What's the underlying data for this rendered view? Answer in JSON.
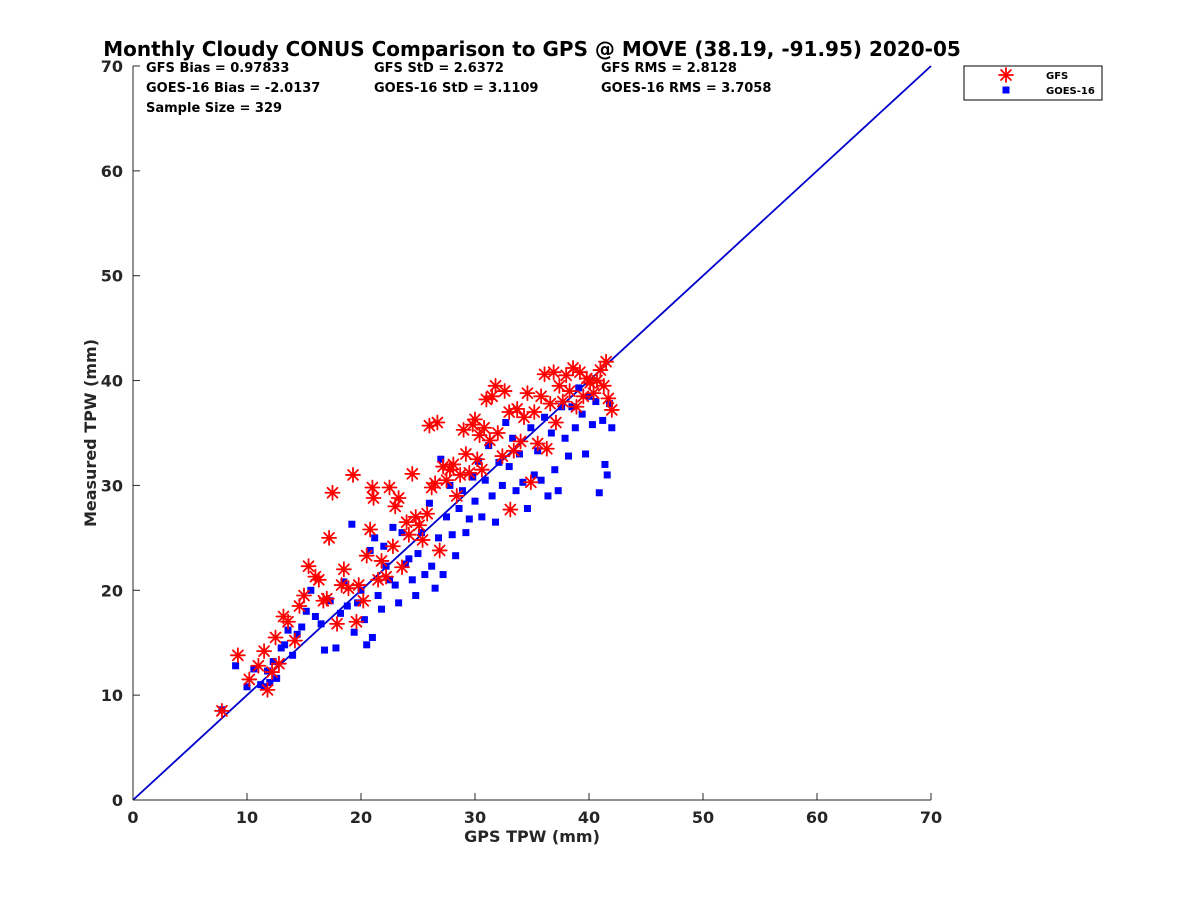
{
  "chart_data": {
    "type": "scatter",
    "title": "Monthly Cloudy CONUS Comparison to GPS @ MOVE (38.19, -91.95) 2020-05",
    "xlabel": "GPS TPW (mm)",
    "ylabel": "Measured TPW (mm)",
    "xlim": [
      0,
      70
    ],
    "ylim": [
      0,
      70
    ],
    "xticks": [
      0,
      10,
      20,
      30,
      40,
      50,
      60,
      70
    ],
    "yticks": [
      0,
      10,
      20,
      30,
      40,
      50,
      60,
      70
    ],
    "grid": false,
    "legend_position": "top-right",
    "stats": [
      [
        "GFS Bias = 0.97833",
        "GFS StD = 2.6372",
        "GFS RMS = 2.8128"
      ],
      [
        "GOES-16 Bias = -2.0137",
        "GOES-16 StD = 3.1109",
        "GOES-16 RMS = 3.7058"
      ],
      [
        "Sample Size = 329"
      ]
    ],
    "reference_line": {
      "from": [
        0,
        0
      ],
      "to": [
        70,
        70
      ],
      "color": "#0000cc"
    },
    "series": [
      {
        "name": "GFS",
        "marker": "asterisk",
        "color": "#ff0000",
        "points": [
          [
            7.8,
            8.5
          ],
          [
            9.2,
            13.8
          ],
          [
            10.2,
            11.5
          ],
          [
            11.0,
            12.8
          ],
          [
            11.5,
            14.2
          ],
          [
            11.8,
            10.5
          ],
          [
            12.2,
            12.2
          ],
          [
            12.5,
            15.5
          ],
          [
            12.8,
            13.0
          ],
          [
            13.2,
            17.5
          ],
          [
            13.6,
            17.0
          ],
          [
            14.2,
            15.2
          ],
          [
            14.6,
            18.5
          ],
          [
            15.0,
            19.5
          ],
          [
            15.4,
            22.3
          ],
          [
            16.0,
            21.3
          ],
          [
            16.3,
            21.0
          ],
          [
            16.7,
            19.0
          ],
          [
            17.0,
            19.2
          ],
          [
            17.2,
            25.0
          ],
          [
            17.5,
            29.3
          ],
          [
            17.9,
            16.8
          ],
          [
            18.3,
            20.5
          ],
          [
            18.5,
            22.0
          ],
          [
            18.9,
            20.2
          ],
          [
            19.3,
            31.0
          ],
          [
            19.6,
            17.0
          ],
          [
            19.8,
            20.5
          ],
          [
            20.2,
            19.0
          ],
          [
            20.5,
            23.3
          ],
          [
            20.8,
            25.8
          ],
          [
            21.0,
            29.8
          ],
          [
            21.1,
            28.8
          ],
          [
            21.5,
            21.0
          ],
          [
            21.8,
            22.8
          ],
          [
            22.2,
            21.3
          ],
          [
            22.5,
            29.8
          ],
          [
            22.8,
            24.2
          ],
          [
            23.0,
            28.0
          ],
          [
            23.3,
            28.8
          ],
          [
            23.6,
            22.2
          ],
          [
            24.0,
            26.5
          ],
          [
            24.2,
            25.3
          ],
          [
            24.5,
            31.1
          ],
          [
            24.8,
            27.0
          ],
          [
            25.1,
            26.2
          ],
          [
            25.4,
            24.8
          ],
          [
            25.8,
            27.3
          ],
          [
            26.0,
            35.7
          ],
          [
            26.2,
            29.8
          ],
          [
            26.5,
            30.2
          ],
          [
            26.7,
            36.0
          ],
          [
            26.9,
            23.8
          ],
          [
            27.2,
            31.8
          ],
          [
            27.5,
            30.5
          ],
          [
            27.8,
            31.5
          ],
          [
            28.1,
            32.0
          ],
          [
            28.4,
            29.0
          ],
          [
            28.7,
            31.0
          ],
          [
            29.0,
            35.3
          ],
          [
            29.2,
            33.0
          ],
          [
            29.5,
            31.2
          ],
          [
            29.8,
            35.8
          ],
          [
            30.0,
            36.3
          ],
          [
            30.2,
            32.5
          ],
          [
            30.4,
            34.8
          ],
          [
            30.6,
            31.5
          ],
          [
            30.8,
            35.5
          ],
          [
            31.0,
            38.2
          ],
          [
            31.3,
            34.3
          ],
          [
            31.5,
            38.5
          ],
          [
            31.8,
            39.5
          ],
          [
            32.0,
            35.0
          ],
          [
            32.4,
            32.8
          ],
          [
            32.6,
            39.0
          ],
          [
            33.0,
            37.0
          ],
          [
            33.1,
            27.7
          ],
          [
            33.4,
            33.3
          ],
          [
            33.7,
            37.3
          ],
          [
            34.0,
            34.2
          ],
          [
            34.3,
            36.5
          ],
          [
            34.6,
            38.8
          ],
          [
            34.9,
            30.3
          ],
          [
            35.2,
            37.0
          ],
          [
            35.5,
            34.0
          ],
          [
            35.8,
            38.5
          ],
          [
            36.1,
            40.6
          ],
          [
            36.3,
            33.5
          ],
          [
            36.6,
            37.8
          ],
          [
            36.9,
            40.8
          ],
          [
            37.1,
            36.0
          ],
          [
            37.4,
            39.5
          ],
          [
            37.7,
            38.0
          ],
          [
            38.0,
            40.5
          ],
          [
            38.3,
            39.0
          ],
          [
            38.6,
            41.2
          ],
          [
            38.9,
            37.5
          ],
          [
            39.2,
            40.8
          ],
          [
            39.5,
            38.5
          ],
          [
            39.8,
            40.2
          ],
          [
            40.1,
            39.8
          ],
          [
            40.4,
            38.8
          ],
          [
            40.7,
            40.0
          ],
          [
            41.0,
            41.0
          ],
          [
            41.3,
            39.5
          ],
          [
            41.5,
            41.8
          ],
          [
            41.7,
            38.3
          ],
          [
            42.0,
            37.2
          ]
        ]
      },
      {
        "name": "GOES-16",
        "marker": "square",
        "color": "#0000ff",
        "points": [
          [
            7.8,
            8.6
          ],
          [
            9.0,
            12.8
          ],
          [
            10.0,
            10.8
          ],
          [
            10.6,
            12.5
          ],
          [
            11.2,
            11.0
          ],
          [
            11.5,
            10.8
          ],
          [
            11.8,
            12.3
          ],
          [
            12.0,
            11.2
          ],
          [
            12.3,
            13.2
          ],
          [
            12.6,
            11.6
          ],
          [
            13.0,
            14.5
          ],
          [
            13.3,
            14.8
          ],
          [
            13.6,
            16.2
          ],
          [
            14.0,
            13.8
          ],
          [
            14.4,
            15.8
          ],
          [
            14.8,
            16.5
          ],
          [
            15.2,
            18.0
          ],
          [
            15.6,
            20.0
          ],
          [
            16.0,
            17.5
          ],
          [
            16.5,
            16.8
          ],
          [
            16.8,
            14.3
          ],
          [
            17.3,
            19.0
          ],
          [
            17.8,
            14.5
          ],
          [
            18.2,
            17.8
          ],
          [
            18.5,
            20.8
          ],
          [
            18.8,
            18.5
          ],
          [
            19.2,
            26.3
          ],
          [
            19.4,
            16.0
          ],
          [
            19.7,
            18.8
          ],
          [
            20.0,
            20.0
          ],
          [
            20.3,
            17.2
          ],
          [
            20.5,
            14.8
          ],
          [
            20.8,
            23.8
          ],
          [
            21.0,
            15.5
          ],
          [
            21.2,
            25.0
          ],
          [
            21.5,
            19.5
          ],
          [
            21.8,
            18.2
          ],
          [
            22.0,
            24.2
          ],
          [
            22.2,
            22.3
          ],
          [
            22.5,
            21.0
          ],
          [
            22.8,
            26.0
          ],
          [
            23.0,
            20.5
          ],
          [
            23.3,
            18.8
          ],
          [
            23.6,
            25.5
          ],
          [
            23.9,
            22.5
          ],
          [
            24.2,
            23.0
          ],
          [
            24.5,
            21.0
          ],
          [
            24.8,
            19.5
          ],
          [
            25.0,
            23.5
          ],
          [
            25.3,
            25.5
          ],
          [
            25.6,
            21.5
          ],
          [
            26.0,
            28.3
          ],
          [
            26.2,
            22.3
          ],
          [
            26.5,
            20.2
          ],
          [
            26.8,
            25.0
          ],
          [
            27.0,
            32.5
          ],
          [
            27.2,
            21.5
          ],
          [
            27.5,
            27.0
          ],
          [
            27.8,
            30.0
          ],
          [
            28.0,
            25.3
          ],
          [
            28.3,
            23.3
          ],
          [
            28.6,
            27.8
          ],
          [
            28.9,
            29.5
          ],
          [
            29.2,
            25.5
          ],
          [
            29.5,
            26.8
          ],
          [
            29.8,
            30.8
          ],
          [
            30.0,
            28.5
          ],
          [
            30.3,
            32.3
          ],
          [
            30.6,
            27.0
          ],
          [
            30.9,
            30.5
          ],
          [
            31.2,
            33.8
          ],
          [
            31.5,
            29.0
          ],
          [
            31.8,
            26.5
          ],
          [
            32.1,
            32.2
          ],
          [
            32.4,
            30.0
          ],
          [
            32.7,
            36.0
          ],
          [
            33.0,
            31.8
          ],
          [
            33.3,
            34.5
          ],
          [
            33.6,
            29.5
          ],
          [
            33.9,
            33.0
          ],
          [
            34.2,
            30.3
          ],
          [
            34.6,
            27.8
          ],
          [
            34.9,
            35.5
          ],
          [
            35.2,
            31.0
          ],
          [
            35.5,
            33.3
          ],
          [
            35.8,
            30.5
          ],
          [
            36.1,
            36.5
          ],
          [
            36.4,
            29.0
          ],
          [
            36.7,
            35.0
          ],
          [
            37.0,
            31.5
          ],
          [
            37.3,
            29.5
          ],
          [
            37.6,
            37.5
          ],
          [
            37.9,
            34.5
          ],
          [
            38.2,
            32.8
          ],
          [
            38.5,
            37.5
          ],
          [
            38.8,
            35.5
          ],
          [
            39.1,
            39.3
          ],
          [
            39.4,
            36.8
          ],
          [
            39.7,
            33.0
          ],
          [
            40.0,
            38.5
          ],
          [
            40.3,
            35.8
          ],
          [
            40.6,
            38.0
          ],
          [
            40.9,
            29.3
          ],
          [
            41.2,
            36.2
          ],
          [
            41.4,
            32.0
          ],
          [
            41.6,
            31.0
          ],
          [
            41.8,
            37.8
          ],
          [
            42.0,
            35.5
          ]
        ]
      }
    ]
  }
}
